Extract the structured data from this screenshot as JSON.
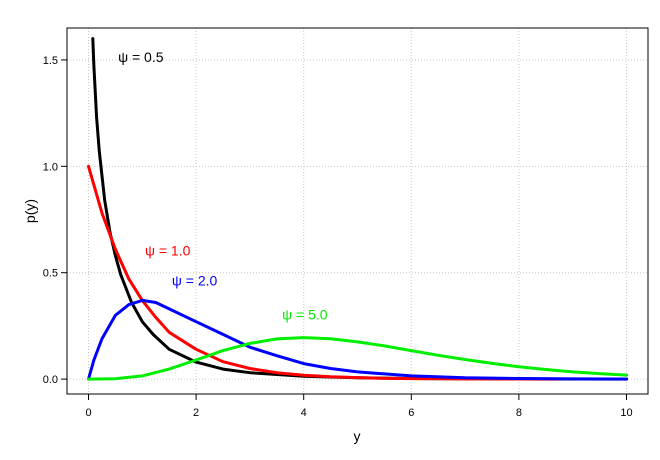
{
  "chart_data": {
    "type": "line",
    "title": "",
    "xlabel": "y",
    "ylabel": "p(y)",
    "xlim": [
      -0.4,
      10.4
    ],
    "ylim": [
      -0.07,
      1.65
    ],
    "xticks": [
      0,
      2,
      4,
      6,
      8,
      10
    ],
    "yticks": [
      0.0,
      0.5,
      1.0,
      1.5
    ],
    "xtick_labels": [
      "0",
      "2",
      "4",
      "6",
      "8",
      "10"
    ],
    "ytick_labels": [
      "0.0",
      "0.5",
      "1.0",
      "1.5"
    ],
    "grid": true,
    "legend": "none (series labeled inline)",
    "series": [
      {
        "name": "ψ = 0.5",
        "color": "#000000",
        "x": [
          0.08,
          0.1,
          0.15,
          0.2,
          0.3,
          0.4,
          0.5,
          0.6,
          0.8,
          1.0,
          1.2,
          1.5,
          2.0,
          2.5,
          3.0,
          4.0,
          5.0,
          6.0,
          7.0,
          8.0,
          9.0,
          10.0
        ],
        "y": [
          1.6,
          1.47,
          1.23,
          1.07,
          0.84,
          0.69,
          0.58,
          0.49,
          0.36,
          0.27,
          0.21,
          0.14,
          0.08,
          0.047,
          0.03,
          0.013,
          0.006,
          0.003,
          0.0015,
          0.0008,
          0.0004,
          0.0002
        ]
      },
      {
        "name": "ψ = 1.0",
        "color": "#ff0000",
        "x": [
          0.0,
          0.25,
          0.5,
          0.75,
          1.0,
          1.25,
          1.5,
          2.0,
          2.5,
          3.0,
          3.5,
          4.0,
          4.5,
          5.0,
          5.5,
          6.0,
          6.5,
          7.0,
          7.5,
          8.0,
          8.7
        ],
        "y": [
          1.0,
          0.78,
          0.61,
          0.47,
          0.37,
          0.29,
          0.22,
          0.14,
          0.082,
          0.05,
          0.03,
          0.018,
          0.011,
          0.007,
          0.004,
          0.0025,
          0.0015,
          0.0009,
          0.0006,
          0.0003,
          0.0002
        ]
      },
      {
        "name": "ψ = 2.0",
        "color": "#0000ff",
        "x": [
          0.0,
          0.1,
          0.25,
          0.5,
          0.75,
          1.0,
          1.25,
          1.5,
          2.0,
          2.5,
          3.0,
          3.5,
          4.0,
          4.5,
          5.0,
          6.0,
          7.0,
          8.0,
          9.0,
          10.0
        ],
        "y": [
          0.0,
          0.09,
          0.19,
          0.3,
          0.35,
          0.37,
          0.36,
          0.33,
          0.27,
          0.21,
          0.15,
          0.11,
          0.073,
          0.05,
          0.034,
          0.015,
          0.006,
          0.003,
          0.001,
          0.0005
        ]
      },
      {
        "name": "ψ = 5.0",
        "color": "#00ee00",
        "x": [
          0.0,
          0.5,
          1.0,
          1.5,
          2.0,
          2.5,
          3.0,
          3.5,
          4.0,
          4.5,
          5.0,
          5.5,
          6.0,
          6.5,
          7.0,
          7.5,
          8.0,
          8.5,
          9.0,
          9.5,
          10.0
        ],
        "y": [
          0.0,
          0.002,
          0.015,
          0.047,
          0.09,
          0.134,
          0.168,
          0.189,
          0.195,
          0.19,
          0.175,
          0.156,
          0.134,
          0.112,
          0.092,
          0.074,
          0.058,
          0.045,
          0.034,
          0.026,
          0.019
        ]
      }
    ]
  }
}
